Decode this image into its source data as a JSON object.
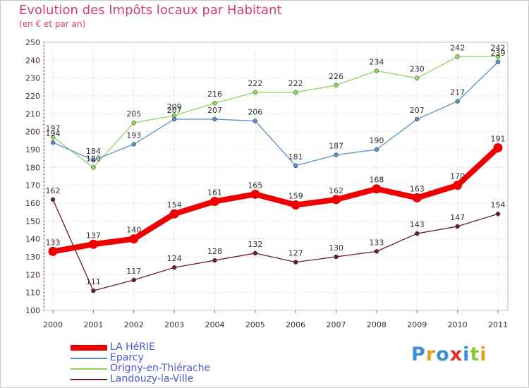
{
  "chart_data": {
    "type": "line",
    "title": "Evolution des Impôts locaux par Habitant",
    "subtitle": "(en € et par an)",
    "x": [
      "2000",
      "2001",
      "2002",
      "2003",
      "2004",
      "2005",
      "2006",
      "2007",
      "2008",
      "2009",
      "2010",
      "2011"
    ],
    "ylim": [
      100,
      250
    ],
    "yticks": [
      100,
      110,
      120,
      130,
      140,
      150,
      160,
      170,
      180,
      190,
      200,
      210,
      220,
      230,
      240,
      250
    ],
    "grid": true,
    "legend_position": "bottom-left",
    "series": [
      {
        "name": "LA HéRIE",
        "color": "#ee0000",
        "values": [
          133,
          137,
          140,
          154,
          161,
          165,
          159,
          162,
          168,
          163,
          170,
          191
        ]
      },
      {
        "name": "Eparcy",
        "color": "#5b8fc8",
        "values": [
          194,
          184,
          193,
          207,
          207,
          206,
          181,
          187,
          190,
          207,
          217,
          239
        ]
      },
      {
        "name": "Origny-en-Thiérache",
        "color": "#8ed65a",
        "values": [
          197,
          180,
          205,
          209,
          216,
          222,
          222,
          226,
          234,
          230,
          242,
          242
        ]
      },
      {
        "name": "Landouzy-la-Ville",
        "color": "#6b1f2a",
        "values": [
          162,
          111,
          117,
          124,
          128,
          132,
          127,
          130,
          133,
          143,
          147,
          154
        ]
      }
    ]
  },
  "logo": {
    "letters": [
      "P",
      "r",
      "o",
      "x",
      "i",
      "t",
      "i"
    ],
    "colors": [
      "#3a8fd8",
      "#e8a020",
      "#3a8fd8",
      "#e03030",
      "#3a8fd8",
      "#8ac830",
      "#e8a020"
    ]
  }
}
